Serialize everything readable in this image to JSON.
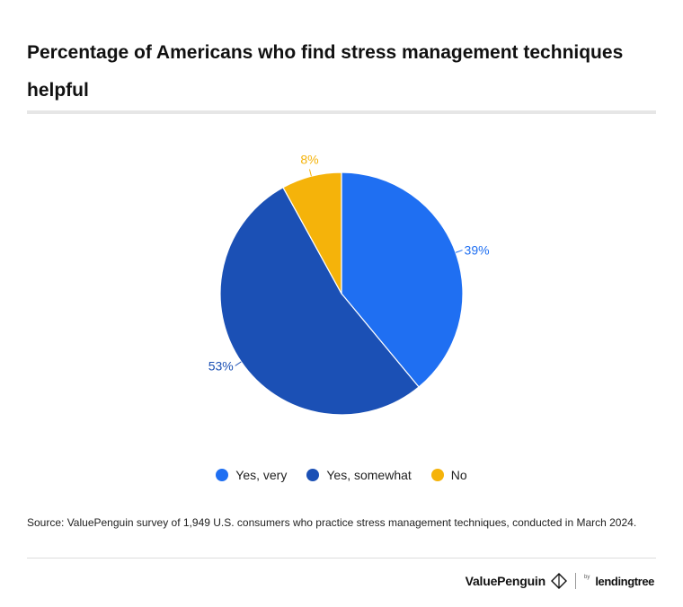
{
  "title": "Percentage of Americans who find stress management techniques helpful",
  "chart_data": {
    "type": "pie",
    "slices": [
      {
        "label": "Yes, very",
        "value": 39,
        "display": "39%",
        "color": "#1f6ff2"
      },
      {
        "label": "Yes, somewhat",
        "value": 53,
        "display": "53%",
        "color": "#1b50b5"
      },
      {
        "label": "No",
        "value": 8,
        "display": "8%",
        "color": "#f5b30a"
      }
    ],
    "legend_position": "bottom"
  },
  "source": "Source: ValuePenguin survey of 1,949 U.S. consumers who practice stress management techniques, conducted in March 2024.",
  "branding": {
    "name": "ValuePenguin",
    "partner_prefix": "by",
    "partner": "lendingtree"
  }
}
